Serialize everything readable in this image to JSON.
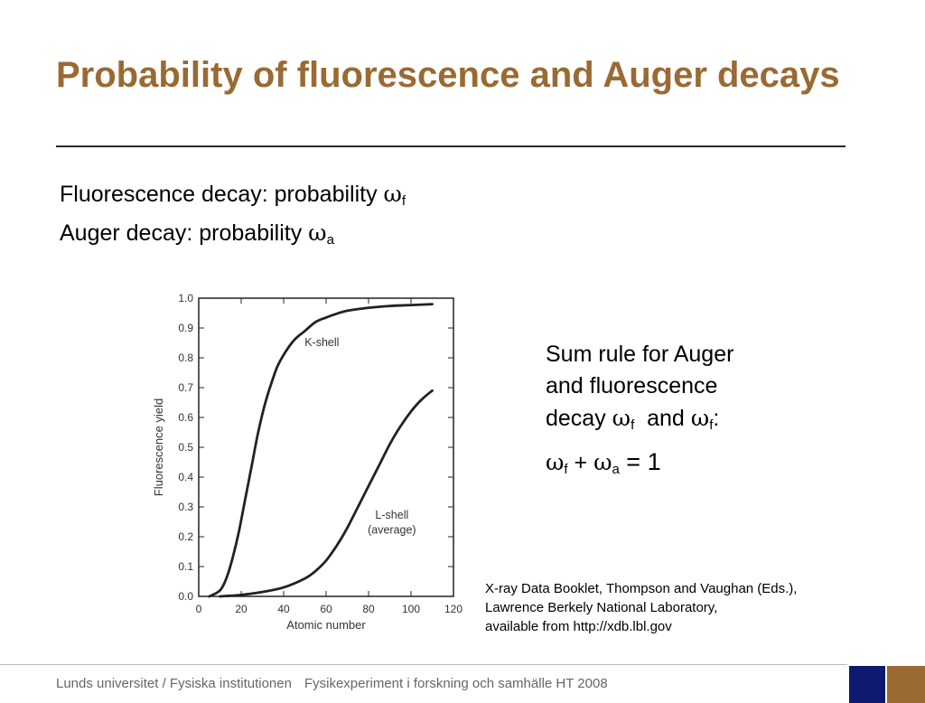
{
  "slide": {
    "title": "Probability of fluorescence and Auger decays",
    "bullets": [
      {
        "text": "Fluorescence decay: probability ",
        "symbol": "ω",
        "sub": "f"
      },
      {
        "text": "Auger decay: probability ",
        "symbol": "ω",
        "sub": "a"
      }
    ],
    "sum_rule": {
      "line1": "Sum rule for Auger",
      "line2": "and  fluorescence",
      "line3_prefix": "decay ",
      "sym": "ω",
      "sub_f": "f",
      "line3_and": "  and ",
      "line3_suffix": ":"
    },
    "equation": {
      "sym": "ω",
      "sub_f": "f",
      "plus": " + ",
      "sub_a": "a",
      "rhs": " = 1"
    },
    "citation": [
      "X-ray Data Booklet, Thompson and Vaughan (Eds.),",
      "Lawrence Berkely National Laboratory,",
      "available from http://xdb.lbl.gov"
    ],
    "footer": {
      "left": "Lunds universitet / Fysiska institutionen",
      "right": "Fysikexperiment i forskning och samhälle HT 2008"
    },
    "colors": {
      "title": "#9a6a33",
      "square_blue": "#0d1a70",
      "square_brown": "#9a6a33"
    }
  },
  "chart_data": {
    "type": "line",
    "xlabel": "Atomic number",
    "ylabel": "Fluorescence yield",
    "xlim": [
      0,
      120
    ],
    "ylim": [
      0,
      1.0
    ],
    "xticks": [
      0,
      20,
      40,
      60,
      80,
      100,
      120
    ],
    "yticks": [
      0.0,
      0.1,
      0.2,
      0.3,
      0.4,
      0.5,
      0.6,
      0.7,
      0.8,
      0.9,
      1.0
    ],
    "xtick_labels": [
      "0",
      "20",
      "40",
      "60",
      "80",
      "100",
      "120"
    ],
    "ytick_labels": [
      "0.0",
      "0.1",
      "0.2",
      "0.3",
      "0.4",
      "0.5",
      "0.6",
      "0.7",
      "0.8",
      "0.9",
      "1.0"
    ],
    "series": [
      {
        "name": "K-shell",
        "x": [
          5,
          10,
          13,
          16,
          19,
          22,
          25,
          28,
          31,
          34,
          37,
          40,
          45,
          50,
          55,
          60,
          65,
          70,
          80,
          90,
          100,
          110
        ],
        "y": [
          0.0,
          0.02,
          0.06,
          0.13,
          0.22,
          0.33,
          0.44,
          0.55,
          0.64,
          0.71,
          0.77,
          0.81,
          0.86,
          0.89,
          0.92,
          0.935,
          0.948,
          0.958,
          0.968,
          0.974,
          0.977,
          0.98
        ]
      },
      {
        "name": "L-shell\n(average)",
        "x": [
          10,
          20,
          30,
          40,
          50,
          55,
          60,
          65,
          70,
          75,
          80,
          85,
          90,
          95,
          100,
          105,
          110
        ],
        "y": [
          0.0,
          0.005,
          0.015,
          0.03,
          0.06,
          0.085,
          0.12,
          0.17,
          0.23,
          0.3,
          0.37,
          0.44,
          0.51,
          0.57,
          0.62,
          0.66,
          0.69
        ]
      }
    ],
    "annotations": [
      {
        "text": "K-shell",
        "x": 58,
        "y": 0.84
      },
      {
        "text": "L-shell",
        "x": 91,
        "y": 0.26
      },
      {
        "text": "(average)",
        "x": 91,
        "y": 0.21
      }
    ],
    "grid": false
  }
}
